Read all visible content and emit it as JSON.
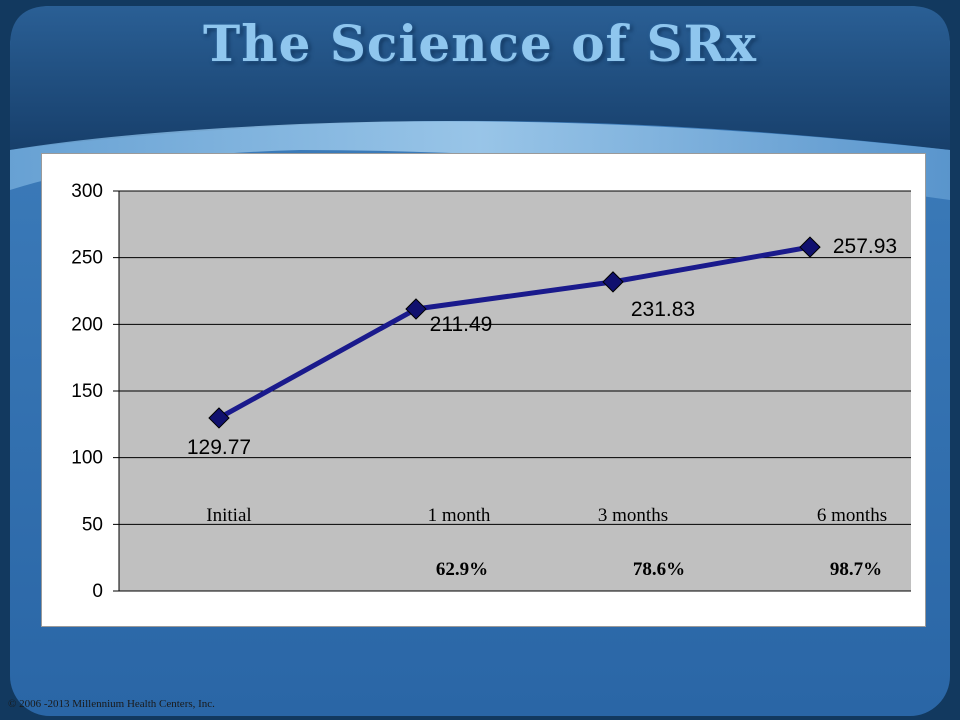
{
  "slide": {
    "title": "The Science of SRx",
    "footer": "© 2006 -2013 Millennium Health Centers, Inc."
  },
  "colors": {
    "line": "#1a1a8c",
    "marker": "#10106e",
    "plot_bg": "#c0c0c0",
    "title": "#8fc6ee"
  },
  "chart_data": {
    "type": "line",
    "title": "",
    "xlabel": "",
    "ylabel": "",
    "ylim": [
      0,
      300
    ],
    "yticks": [
      "0",
      "50",
      "100",
      "150",
      "200",
      "250",
      "300"
    ],
    "grid": true,
    "legend": "none",
    "categories": [
      "Initial",
      "1 month",
      "3 months",
      "6 months"
    ],
    "series": [
      {
        "values": [
          129.77,
          211.49,
          231.83,
          257.93
        ],
        "labels": [
          "129.77",
          "211.49",
          "231.83",
          "257.93"
        ]
      }
    ],
    "percent_labels": [
      "",
      "62.9%",
      "78.6%",
      "98.7%"
    ]
  }
}
